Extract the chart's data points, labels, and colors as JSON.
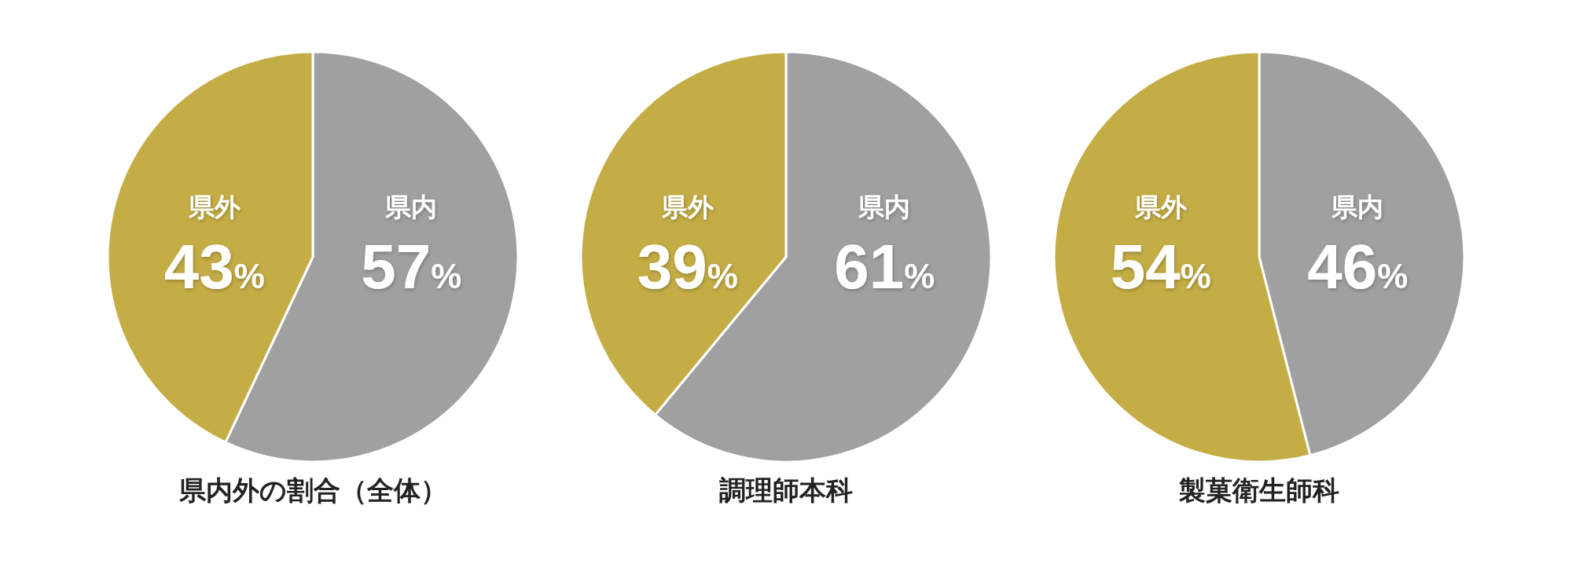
{
  "chart_data": [
    {
      "type": "pie",
      "title": "県内外の割合（全体）",
      "categories": [
        "県内",
        "県外"
      ],
      "values": [
        57,
        43
      ],
      "colors": [
        "#a0a0a0",
        "#c4ad45"
      ],
      "value_labels": [
        "57%",
        "43%"
      ]
    },
    {
      "type": "pie",
      "title": "調理師本科",
      "categories": [
        "県内",
        "県外"
      ],
      "values": [
        61,
        39
      ],
      "colors": [
        "#a0a0a0",
        "#c4ad45"
      ],
      "value_labels": [
        "61%",
        "39%"
      ]
    },
    {
      "type": "pie",
      "title": "製菓衛生師科",
      "categories": [
        "県内",
        "県外"
      ],
      "values": [
        46,
        54
      ],
      "colors": [
        "#a0a0a0",
        "#c4ad45"
      ],
      "value_labels": [
        "46%",
        "54%"
      ]
    }
  ]
}
